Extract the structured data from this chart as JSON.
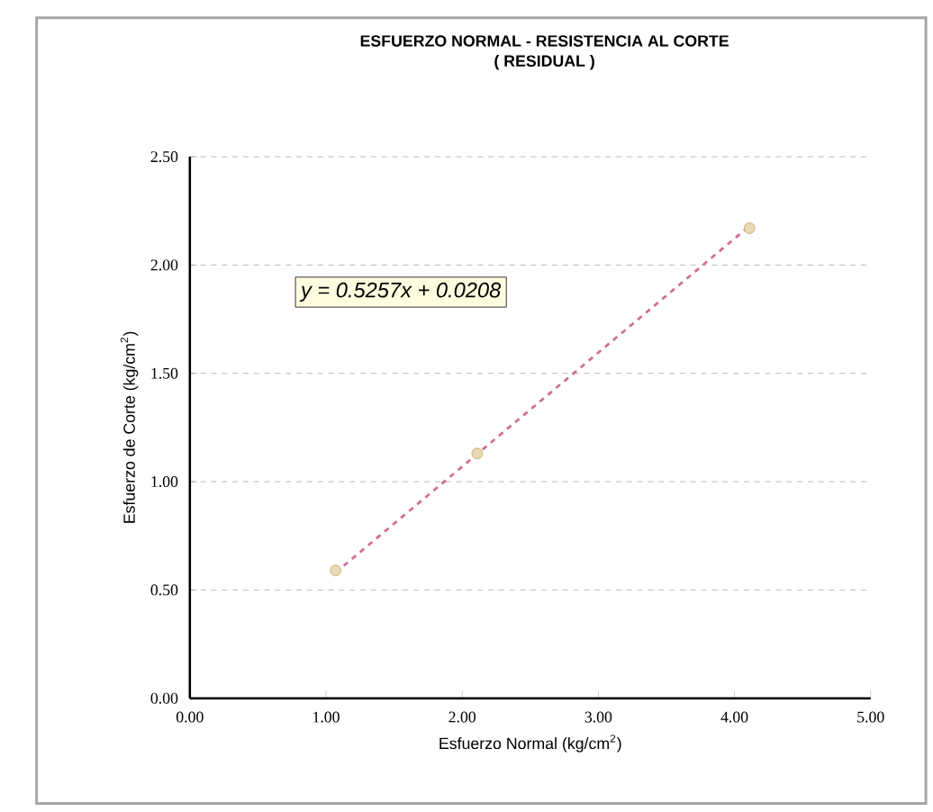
{
  "chart_data": {
    "type": "scatter",
    "title": "ESFUERZO NORMAL - RESISTENCIA AL CORTE",
    "subtitle": "( RESIDUAL )",
    "xlabel": "Esfuerzo Normal (kg/cm$^{2}$)",
    "ylabel": "Esfuerzo de Corte (kg/cm$^{2}$)",
    "series": [
      {
        "color": "#c8a050",
        "marker": "circle",
        "x": [
          1.07,
          2.11,
          4.11
        ],
        "values": [
          0.59,
          1.13,
          2.17
        ]
      },
      {
        "type": "line",
        "color": "#d0708a",
        "line_style": "dashed",
        "marker": "none",
        "x": [
          1.07,
          4.11
        ],
        "values": [
          0.58,
          2.18
        ]
      }
    ],
    "annotations": [
      "y = 0.5257x + 0.0208"
    ],
    "xlim": [
      0,
      5
    ],
    "xticks": [
      {
        "value": 0,
        "label": "0.00"
      },
      {
        "value": 1,
        "label": "1.00"
      },
      {
        "value": 2,
        "label": "2.00"
      },
      {
        "value": 3,
        "label": "3.00"
      },
      {
        "value": 4,
        "label": "4.00"
      },
      {
        "value": 5,
        "label": "5.00"
      }
    ],
    "ylim": [
      0,
      2.5
    ],
    "yticks": [
      {
        "value": 0,
        "label": "0.00"
      },
      {
        "value": 0.5,
        "label": "0.50"
      },
      {
        "value": 1,
        "label": "1.00"
      },
      {
        "value": 1.5,
        "label": "1.50"
      },
      {
        "value": 2,
        "label": "2.00"
      },
      {
        "value": 2.5,
        "label": "2.50"
      }
    ],
    "grid": "y"
  }
}
